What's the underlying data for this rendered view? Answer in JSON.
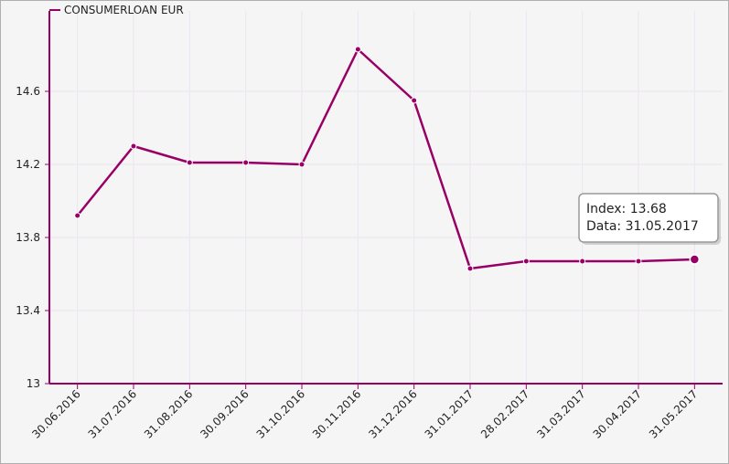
{
  "chart_data": {
    "type": "line",
    "legend": "CONSUMERLOAN EUR",
    "categories": [
      "30.06.2016",
      "31.07.2016",
      "31.08.2016",
      "30.09.2016",
      "31.10.2016",
      "30.11.2016",
      "31.12.2016",
      "31.01.2017",
      "28.02.2017",
      "31.03.2017",
      "30.04.2017",
      "31.05.2017"
    ],
    "series": [
      {
        "name": "CONSUMERLOAN EUR",
        "color": "#990066",
        "values": [
          13.92,
          14.3,
          14.21,
          14.21,
          14.2,
          14.83,
          14.55,
          13.63,
          13.67,
          13.67,
          13.67,
          13.68
        ]
      }
    ],
    "ylim": [
      13,
      15.04
    ],
    "yticks": [
      13,
      13.4,
      13.8,
      14.2,
      14.6
    ],
    "grid": true,
    "tooltip": {
      "lines": [
        "Index: 13.68",
        "Data: 31.05.2017"
      ]
    }
  }
}
